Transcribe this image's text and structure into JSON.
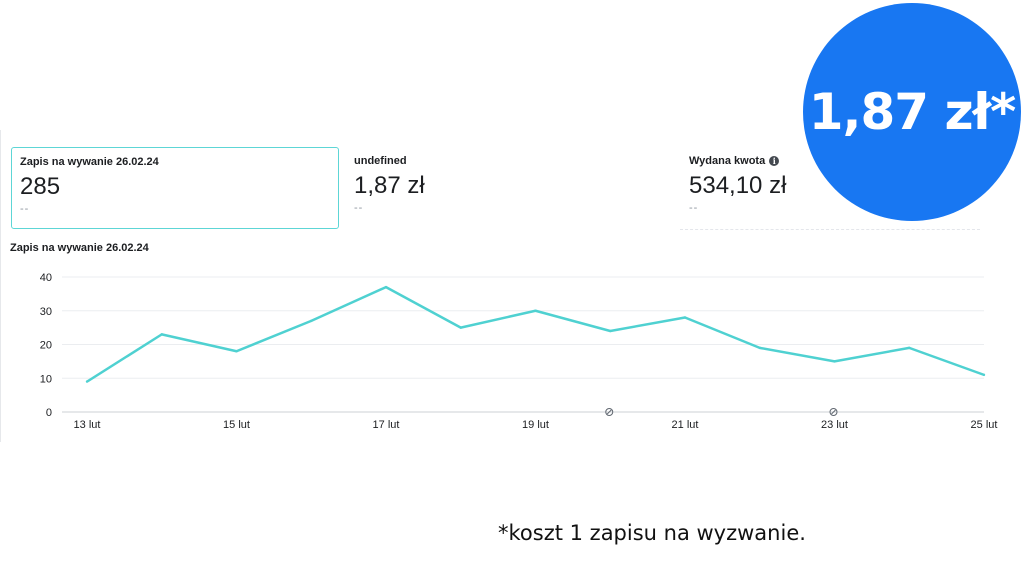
{
  "cards": [
    {
      "title": "Zapis na wywanie 26.02.24",
      "value": "285",
      "delta": "--"
    },
    {
      "title": "undefined",
      "value": "1,87 zł",
      "delta": "--"
    },
    {
      "title": "Wydana kwota",
      "value": "534,10 zł",
      "delta": "--"
    }
  ],
  "chart_title": "Zapis na wywanie 26.02.24",
  "badge_text": "1,87 zł*",
  "footnote": "*koszt 1 zapisu na wyzwanie.",
  "colors": {
    "line": "#4fd1d1",
    "badge": "#1877f2",
    "selected_border": "#5dd6d6"
  },
  "chart_data": {
    "type": "line",
    "title": "Zapis na wywanie 26.02.24",
    "x": [
      "13 lut",
      "14 lut",
      "15 lut",
      "16 lut",
      "17 lut",
      "18 lut",
      "19 lut",
      "20 lut",
      "21 lut",
      "22 lut",
      "23 lut",
      "24 lut",
      "25 lut"
    ],
    "tick_labels": [
      "13 lut",
      "15 lut",
      "17 lut",
      "19 lut",
      "21 lut",
      "23 lut",
      "25 lut"
    ],
    "series": [
      {
        "values": [
          9,
          23,
          18,
          27,
          37,
          25,
          30,
          24,
          28,
          19,
          15,
          19,
          11
        ]
      }
    ],
    "yticks": [
      0,
      10,
      20,
      30,
      40
    ],
    "ylim": [
      0,
      40
    ],
    "grid": true
  }
}
